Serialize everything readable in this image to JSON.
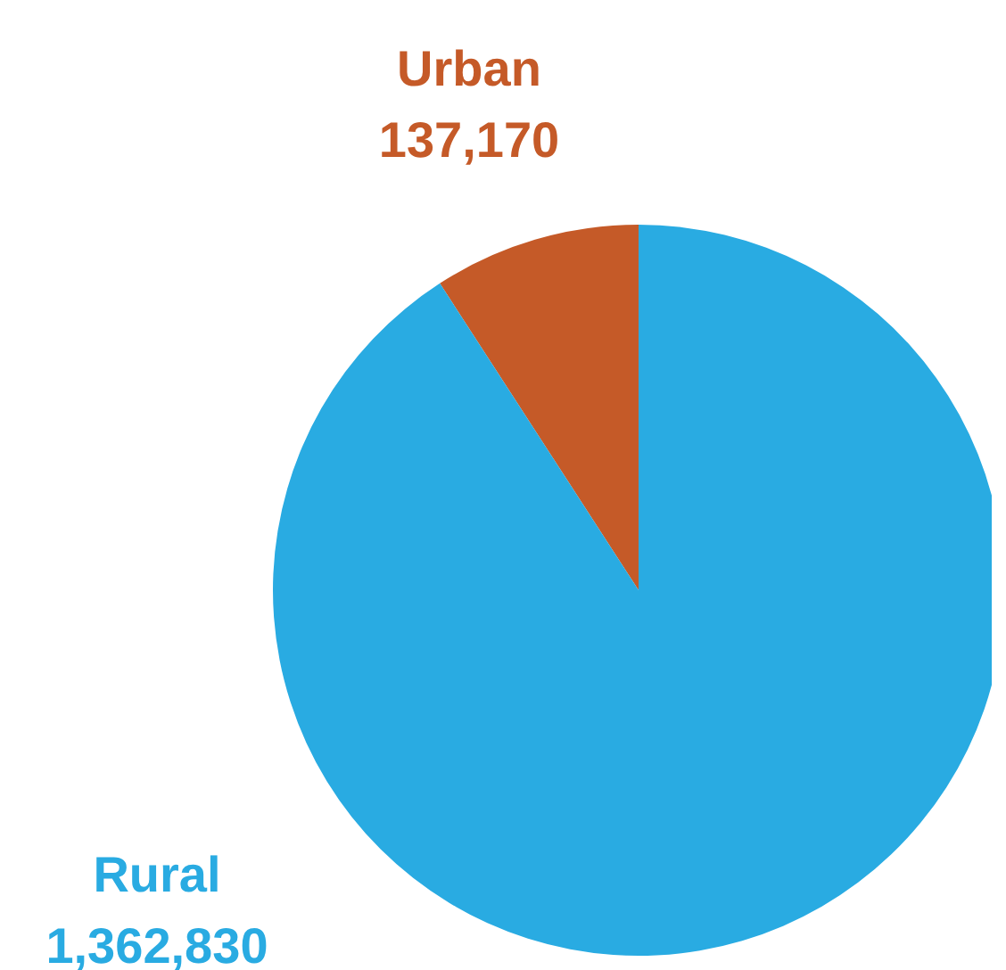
{
  "chart_data": {
    "type": "pie",
    "categories": [
      "Urban",
      "Rural"
    ],
    "values": [
      137170,
      1362830
    ],
    "value_labels": [
      "137,170",
      "1,362,830"
    ],
    "colors": [
      "#c55a28",
      "#29abe2"
    ]
  }
}
